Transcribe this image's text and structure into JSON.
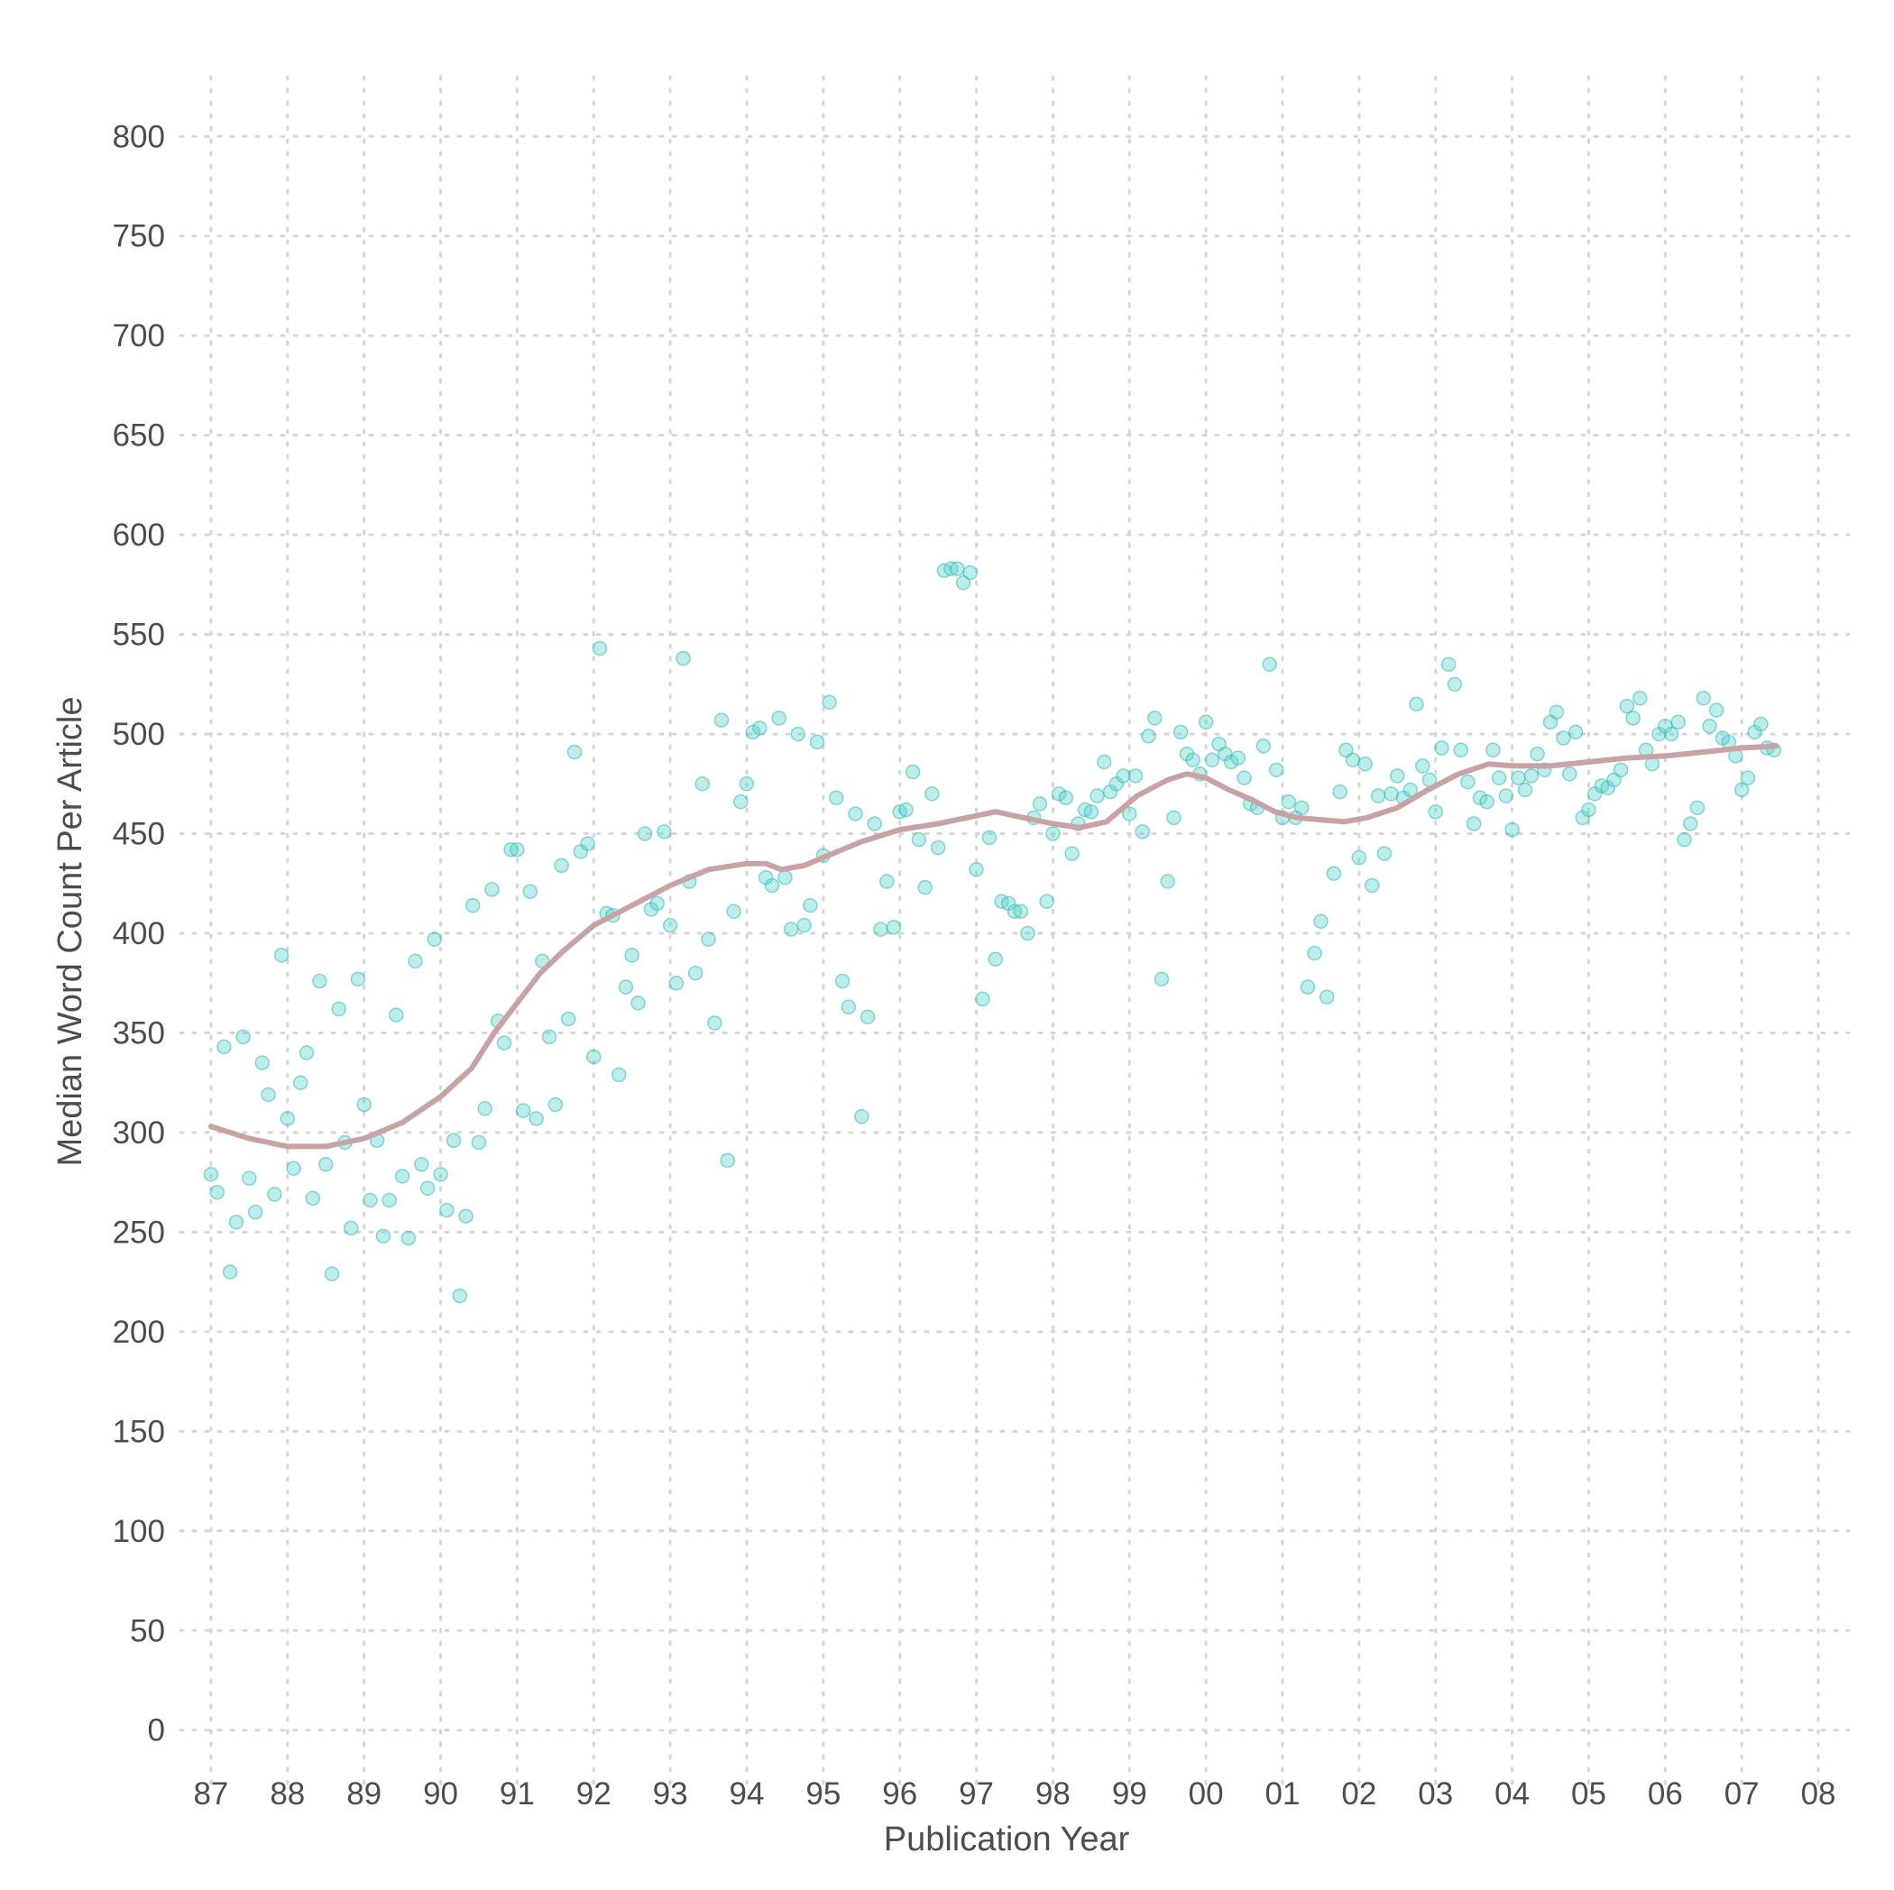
{
  "chart_data": {
    "type": "scatter",
    "title": "",
    "xlabel": "Publication Year",
    "ylabel": "Median Word Count Per Article",
    "grid": true,
    "legend": "none",
    "colors": {
      "points": "#5fd3d0",
      "trend": "#c9a3a3",
      "grid": "#d6d6d6",
      "text": "#4d4d4d"
    },
    "x_tick_labels": [
      "87",
      "88",
      "89",
      "90",
      "91",
      "92",
      "93",
      "94",
      "95",
      "96",
      "97",
      "98",
      "99",
      "00",
      "01",
      "02",
      "03",
      "04",
      "05",
      "06",
      "07",
      "08"
    ],
    "y_ticks": [
      0,
      50,
      100,
      150,
      200,
      250,
      300,
      350,
      400,
      450,
      500,
      550,
      600,
      650,
      700,
      750,
      800
    ],
    "xlim": [
      1986.6,
      2008.4
    ],
    "ylim": [
      -30,
      830
    ],
    "points": [
      [
        1987.0,
        279
      ],
      [
        1987.08,
        270
      ],
      [
        1987.17,
        343
      ],
      [
        1987.25,
        230
      ],
      [
        1987.33,
        255
      ],
      [
        1987.42,
        348
      ],
      [
        1987.5,
        277
      ],
      [
        1987.58,
        260
      ],
      [
        1987.67,
        335
      ],
      [
        1987.75,
        319
      ],
      [
        1987.83,
        269
      ],
      [
        1987.92,
        389
      ],
      [
        1988.0,
        307
      ],
      [
        1988.08,
        282
      ],
      [
        1988.17,
        325
      ],
      [
        1988.25,
        340
      ],
      [
        1988.33,
        267
      ],
      [
        1988.42,
        376
      ],
      [
        1988.5,
        284
      ],
      [
        1988.58,
        229
      ],
      [
        1988.67,
        362
      ],
      [
        1988.75,
        295
      ],
      [
        1988.83,
        252
      ],
      [
        1988.92,
        377
      ],
      [
        1989.0,
        314
      ],
      [
        1989.08,
        266
      ],
      [
        1989.17,
        296
      ],
      [
        1989.25,
        248
      ],
      [
        1989.33,
        266
      ],
      [
        1989.42,
        359
      ],
      [
        1989.5,
        278
      ],
      [
        1989.58,
        247
      ],
      [
        1989.67,
        386
      ],
      [
        1989.75,
        284
      ],
      [
        1989.83,
        272
      ],
      [
        1989.92,
        397
      ],
      [
        1990.0,
        279
      ],
      [
        1990.08,
        261
      ],
      [
        1990.17,
        296
      ],
      [
        1990.25,
        218
      ],
      [
        1990.33,
        258
      ],
      [
        1990.42,
        414
      ],
      [
        1990.5,
        295
      ],
      [
        1990.58,
        312
      ],
      [
        1990.67,
        422
      ],
      [
        1990.75,
        356
      ],
      [
        1990.83,
        345
      ],
      [
        1990.92,
        442
      ],
      [
        1991.0,
        442
      ],
      [
        1991.08,
        311
      ],
      [
        1991.17,
        421
      ],
      [
        1991.25,
        307
      ],
      [
        1991.33,
        386
      ],
      [
        1991.42,
        348
      ],
      [
        1991.5,
        314
      ],
      [
        1991.58,
        434
      ],
      [
        1991.67,
        357
      ],
      [
        1991.75,
        491
      ],
      [
        1991.83,
        441
      ],
      [
        1991.92,
        445
      ],
      [
        1992.0,
        338
      ],
      [
        1992.08,
        543
      ],
      [
        1992.17,
        410
      ],
      [
        1992.25,
        409
      ],
      [
        1992.33,
        329
      ],
      [
        1992.42,
        373
      ],
      [
        1992.5,
        389
      ],
      [
        1992.58,
        365
      ],
      [
        1992.67,
        450
      ],
      [
        1992.75,
        412
      ],
      [
        1992.83,
        415
      ],
      [
        1992.92,
        451
      ],
      [
        1993.0,
        404
      ],
      [
        1993.08,
        375
      ],
      [
        1993.17,
        538
      ],
      [
        1993.25,
        426
      ],
      [
        1993.33,
        380
      ],
      [
        1993.42,
        475
      ],
      [
        1993.5,
        397
      ],
      [
        1993.58,
        355
      ],
      [
        1993.67,
        507
      ],
      [
        1993.75,
        286
      ],
      [
        1993.83,
        411
      ],
      [
        1993.92,
        466
      ],
      [
        1994.0,
        475
      ],
      [
        1994.08,
        501
      ],
      [
        1994.17,
        503
      ],
      [
        1994.25,
        428
      ],
      [
        1994.33,
        424
      ],
      [
        1994.42,
        508
      ],
      [
        1994.5,
        428
      ],
      [
        1994.58,
        402
      ],
      [
        1994.67,
        500
      ],
      [
        1994.75,
        404
      ],
      [
        1994.83,
        414
      ],
      [
        1994.92,
        496
      ],
      [
        1995.0,
        439
      ],
      [
        1995.08,
        516
      ],
      [
        1995.17,
        468
      ],
      [
        1995.25,
        376
      ],
      [
        1995.33,
        363
      ],
      [
        1995.42,
        460
      ],
      [
        1995.5,
        308
      ],
      [
        1995.58,
        358
      ],
      [
        1995.67,
        455
      ],
      [
        1995.75,
        402
      ],
      [
        1995.83,
        426
      ],
      [
        1995.92,
        403
      ],
      [
        1996.0,
        461
      ],
      [
        1996.08,
        462
      ],
      [
        1996.17,
        481
      ],
      [
        1996.25,
        447
      ],
      [
        1996.33,
        423
      ],
      [
        1996.42,
        470
      ],
      [
        1996.5,
        443
      ],
      [
        1996.58,
        582
      ],
      [
        1996.67,
        583
      ],
      [
        1996.75,
        583
      ],
      [
        1996.83,
        576
      ],
      [
        1996.92,
        581
      ],
      [
        1997.0,
        432
      ],
      [
        1997.08,
        367
      ],
      [
        1997.17,
        448
      ],
      [
        1997.25,
        387
      ],
      [
        1997.33,
        416
      ],
      [
        1997.42,
        415
      ],
      [
        1997.5,
        411
      ],
      [
        1997.58,
        411
      ],
      [
        1997.67,
        400
      ],
      [
        1997.75,
        458
      ],
      [
        1997.83,
        465
      ],
      [
        1997.92,
        416
      ],
      [
        1998.0,
        450
      ],
      [
        1998.08,
        470
      ],
      [
        1998.17,
        468
      ],
      [
        1998.25,
        440
      ],
      [
        1998.33,
        455
      ],
      [
        1998.42,
        462
      ],
      [
        1998.5,
        461
      ],
      [
        1998.58,
        469
      ],
      [
        1998.67,
        486
      ],
      [
        1998.75,
        471
      ],
      [
        1998.83,
        475
      ],
      [
        1998.92,
        479
      ],
      [
        1999.0,
        460
      ],
      [
        1999.08,
        479
      ],
      [
        1999.17,
        451
      ],
      [
        1999.25,
        499
      ],
      [
        1999.33,
        508
      ],
      [
        1999.42,
        377
      ],
      [
        1999.5,
        426
      ],
      [
        1999.58,
        458
      ],
      [
        1999.67,
        501
      ],
      [
        1999.75,
        490
      ],
      [
        1999.83,
        487
      ],
      [
        1999.92,
        480
      ],
      [
        2000.0,
        506
      ],
      [
        2000.08,
        487
      ],
      [
        2000.17,
        495
      ],
      [
        2000.25,
        490
      ],
      [
        2000.33,
        486
      ],
      [
        2000.42,
        488
      ],
      [
        2000.5,
        478
      ],
      [
        2000.58,
        465
      ],
      [
        2000.67,
        463
      ],
      [
        2000.75,
        494
      ],
      [
        2000.83,
        535
      ],
      [
        2000.92,
        482
      ],
      [
        2001.0,
        458
      ],
      [
        2001.08,
        466
      ],
      [
        2001.17,
        458
      ],
      [
        2001.25,
        463
      ],
      [
        2001.33,
        373
      ],
      [
        2001.42,
        390
      ],
      [
        2001.5,
        406
      ],
      [
        2001.58,
        368
      ],
      [
        2001.67,
        430
      ],
      [
        2001.75,
        471
      ],
      [
        2001.83,
        492
      ],
      [
        2001.92,
        487
      ],
      [
        2002.0,
        438
      ],
      [
        2002.08,
        485
      ],
      [
        2002.17,
        424
      ],
      [
        2002.25,
        469
      ],
      [
        2002.33,
        440
      ],
      [
        2002.42,
        470
      ],
      [
        2002.5,
        479
      ],
      [
        2002.58,
        468
      ],
      [
        2002.67,
        472
      ],
      [
        2002.75,
        515
      ],
      [
        2002.83,
        484
      ],
      [
        2002.92,
        477
      ],
      [
        2003.0,
        461
      ],
      [
        2003.08,
        493
      ],
      [
        2003.17,
        535
      ],
      [
        2003.25,
        525
      ],
      [
        2003.33,
        492
      ],
      [
        2003.42,
        476
      ],
      [
        2003.5,
        455
      ],
      [
        2003.58,
        468
      ],
      [
        2003.67,
        466
      ],
      [
        2003.75,
        492
      ],
      [
        2003.83,
        478
      ],
      [
        2003.92,
        469
      ],
      [
        2004.0,
        452
      ],
      [
        2004.08,
        478
      ],
      [
        2004.17,
        472
      ],
      [
        2004.25,
        479
      ],
      [
        2004.33,
        490
      ],
      [
        2004.42,
        482
      ],
      [
        2004.5,
        506
      ],
      [
        2004.58,
        511
      ],
      [
        2004.67,
        498
      ],
      [
        2004.75,
        480
      ],
      [
        2004.83,
        501
      ],
      [
        2004.92,
        458
      ],
      [
        2005.0,
        462
      ],
      [
        2005.08,
        470
      ],
      [
        2005.17,
        474
      ],
      [
        2005.25,
        473
      ],
      [
        2005.33,
        477
      ],
      [
        2005.42,
        482
      ],
      [
        2005.5,
        514
      ],
      [
        2005.58,
        508
      ],
      [
        2005.67,
        518
      ],
      [
        2005.75,
        492
      ],
      [
        2005.83,
        485
      ],
      [
        2005.92,
        500
      ],
      [
        2006.0,
        504
      ],
      [
        2006.08,
        500
      ],
      [
        2006.17,
        506
      ],
      [
        2006.25,
        447
      ],
      [
        2006.33,
        455
      ],
      [
        2006.42,
        463
      ],
      [
        2006.5,
        518
      ],
      [
        2006.58,
        504
      ],
      [
        2006.67,
        512
      ],
      [
        2006.75,
        498
      ],
      [
        2006.83,
        496
      ],
      [
        2006.92,
        489
      ],
      [
        2007.0,
        472
      ],
      [
        2007.08,
        478
      ],
      [
        2007.17,
        501
      ],
      [
        2007.25,
        505
      ],
      [
        2007.33,
        493
      ],
      [
        2007.42,
        492
      ]
    ],
    "trend": [
      [
        1987.0,
        303
      ],
      [
        1987.5,
        297
      ],
      [
        1988.0,
        293
      ],
      [
        1988.5,
        293
      ],
      [
        1989.0,
        297
      ],
      [
        1989.5,
        305
      ],
      [
        1990.0,
        318
      ],
      [
        1990.4,
        332
      ],
      [
        1990.7,
        350
      ],
      [
        1991.0,
        365
      ],
      [
        1991.3,
        380
      ],
      [
        1991.6,
        391
      ],
      [
        1992.0,
        404
      ],
      [
        1992.5,
        414
      ],
      [
        1993.0,
        424
      ],
      [
        1993.5,
        432
      ],
      [
        1994.0,
        435
      ],
      [
        1994.25,
        435
      ],
      [
        1994.45,
        432
      ],
      [
        1994.75,
        434
      ],
      [
        1995.0,
        438
      ],
      [
        1995.5,
        446
      ],
      [
        1996.0,
        452
      ],
      [
        1996.5,
        455
      ],
      [
        1997.0,
        459
      ],
      [
        1997.25,
        461
      ],
      [
        1997.5,
        459
      ],
      [
        1998.0,
        455
      ],
      [
        1998.35,
        453
      ],
      [
        1998.7,
        456
      ],
      [
        1999.1,
        469
      ],
      [
        1999.5,
        477
      ],
      [
        1999.75,
        480
      ],
      [
        2000.0,
        478
      ],
      [
        2000.3,
        472
      ],
      [
        2000.6,
        467
      ],
      [
        2000.9,
        461
      ],
      [
        2001.2,
        458
      ],
      [
        2001.5,
        457
      ],
      [
        2001.8,
        456
      ],
      [
        2002.1,
        458
      ],
      [
        2002.5,
        463
      ],
      [
        2002.9,
        472
      ],
      [
        2003.3,
        480
      ],
      [
        2003.7,
        485
      ],
      [
        2004.0,
        484
      ],
      [
        2004.5,
        484
      ],
      [
        2005.0,
        486
      ],
      [
        2005.5,
        488
      ],
      [
        2006.0,
        489
      ],
      [
        2006.5,
        491
      ],
      [
        2007.0,
        493
      ],
      [
        2007.45,
        494
      ]
    ]
  }
}
